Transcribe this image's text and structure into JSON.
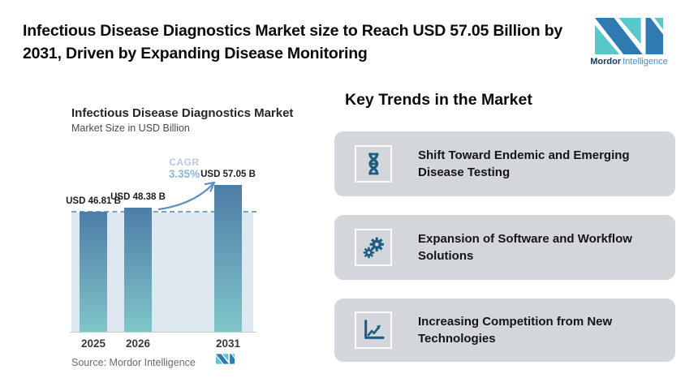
{
  "header": {
    "headline": "Infectious Disease Diagnostics Market size to Reach USD 57.05 Billion by 2031, Driven by Expanding Disease Monitoring",
    "brand_bold": "Mordor",
    "brand_light": "Intelligence"
  },
  "chart_data": {
    "type": "bar",
    "title": "Infectious Disease Diagnostics Market",
    "subtitle": "Market Size in USD Billion",
    "categories": [
      "2025",
      "2026",
      "2031"
    ],
    "values": [
      46.81,
      48.38,
      57.05
    ],
    "value_labels": [
      "USD 46.81 B",
      "USD 48.38 B",
      "USD 57.05 B"
    ],
    "ylim": [
      0,
      57.05
    ],
    "baseline_reference": 46.81,
    "grid": false,
    "legend": "none",
    "cagr": {
      "label": "CAGR",
      "value": "3.35%"
    },
    "source": "Source: Mordor Intelligence"
  },
  "trends": {
    "heading": "Key Trends in the Market",
    "items": [
      {
        "icon": "dna-icon",
        "label": "Shift Toward Endemic and Emerging Disease Testing"
      },
      {
        "icon": "gears-icon",
        "label": "Expansion of Software and Workflow Solutions"
      },
      {
        "icon": "chart-growth-icon",
        "label": "Increasing Competition from New Technologies"
      }
    ]
  },
  "colors": {
    "accent_bar_top": "#4d7da7",
    "accent_bar_bottom": "#80c6c9",
    "plot_panel": "#dde8f1",
    "dashed_line": "#74a3cd",
    "arrow_blue": "#5d90c1",
    "cagr_light": "#b4cce6",
    "cagr_dark": "#8fb3d9",
    "icon_blue": "#1d5f82",
    "card_bg": "#d3d7dc",
    "icon_box_border": "#fafbfc",
    "brand_blue": "#2f7ab0",
    "brand_teal": "#59c7cc",
    "brand_text_dark": "#16365c",
    "brand_text_light": "#4d88c8",
    "axis_line": "#c8c8c8",
    "text_dark": "#111111",
    "text_gray": "#4c4c4c",
    "source_gray": "#6b6b6b"
  }
}
